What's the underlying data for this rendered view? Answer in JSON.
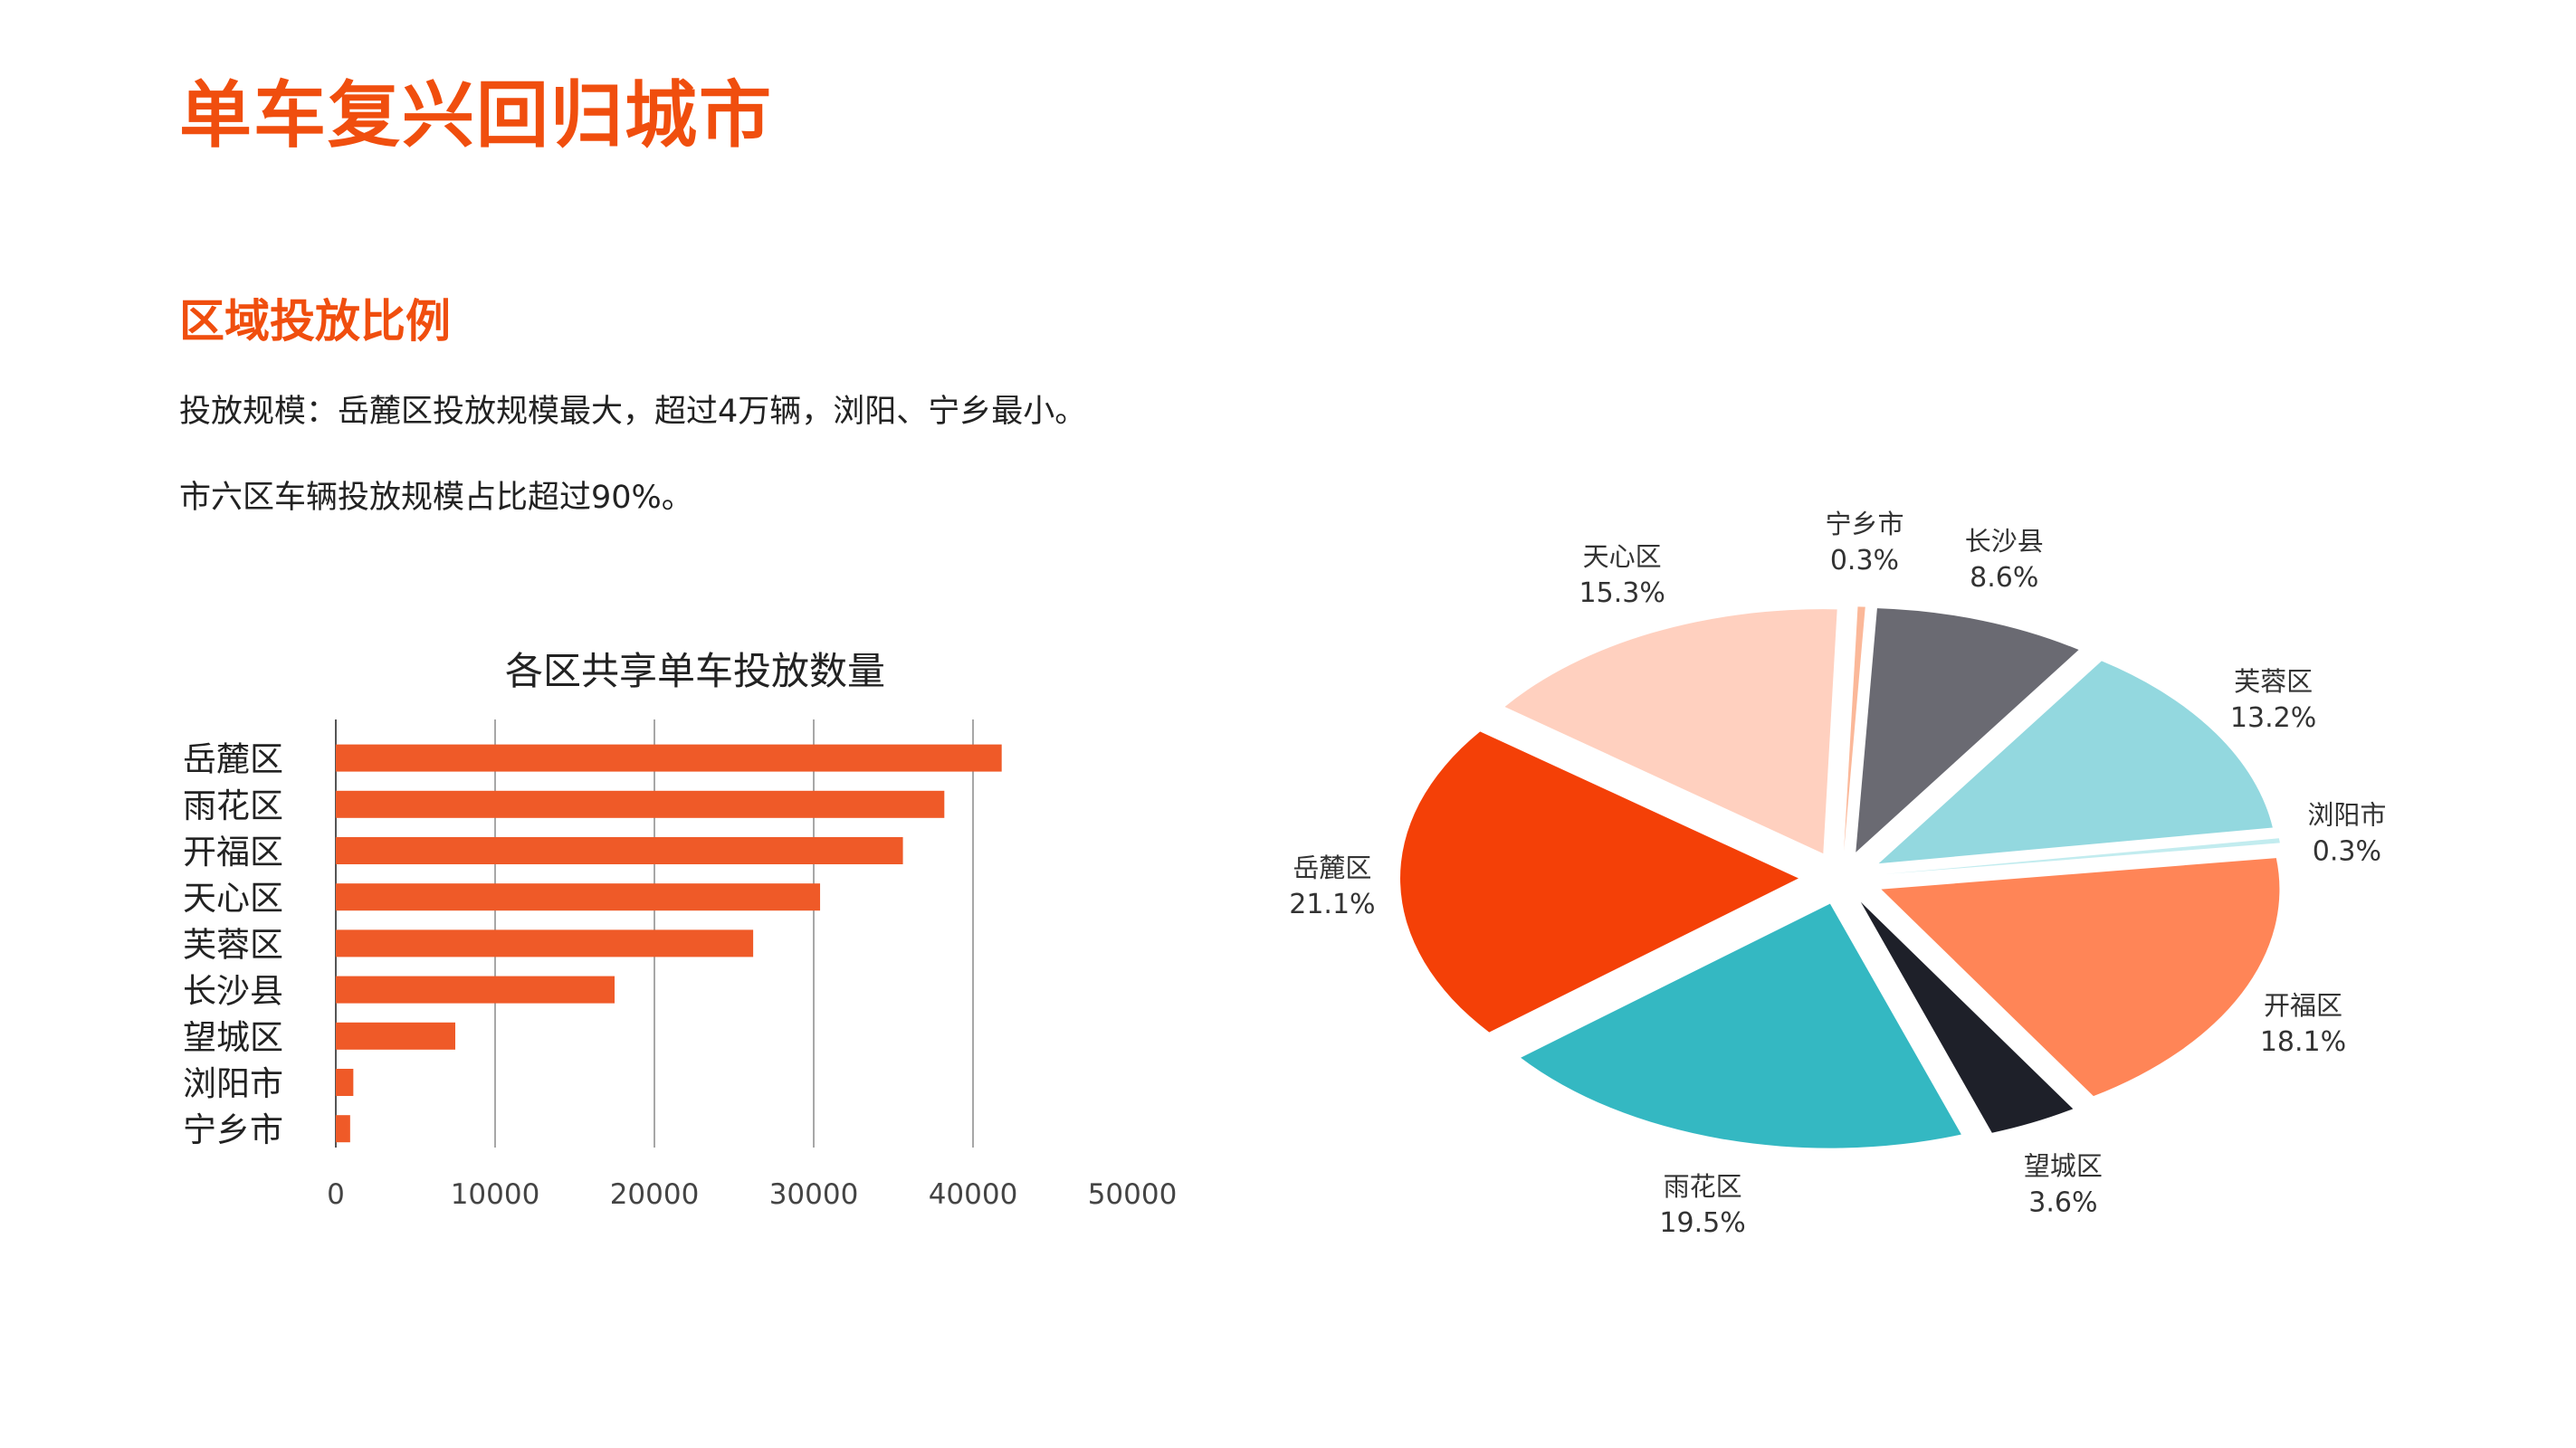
{
  "header": {
    "title": "单车复兴回归城市"
  },
  "section": {
    "title": "区域投放比例",
    "paragraphs": [
      "投放规模：岳麓区投放规模最大，超过4万辆，浏阳、宁乡最小。",
      "市六区车辆投放规模占比超过90%。"
    ]
  },
  "colors": {
    "accent": "#f04e0e",
    "bar": "#ef5a28"
  },
  "chart_data": [
    {
      "type": "bar",
      "orientation": "horizontal",
      "title": "各区共享单车投放数量",
      "categories": [
        "岳麓区",
        "雨花区",
        "开福区",
        "天心区",
        "芙蓉区",
        "长沙县",
        "望城区",
        "浏阳市",
        "宁乡市"
      ],
      "values": [
        41800,
        38200,
        35600,
        30400,
        26200,
        17500,
        7500,
        1100,
        900
      ],
      "xlim": [
        0,
        50000
      ],
      "xticks": [
        0,
        10000,
        20000,
        30000,
        40000,
        50000
      ],
      "grid": "vertical",
      "color": "#ef5a28"
    },
    {
      "type": "pie",
      "exploded": true,
      "labels": [
        "宁乡市",
        "长沙县",
        "芙蓉区",
        "浏阳市",
        "开福区",
        "望城区",
        "雨花区",
        "岳麓区",
        "天心区"
      ],
      "values": [
        0.3,
        8.6,
        13.2,
        0.3,
        18.1,
        3.6,
        19.5,
        21.1,
        15.3
      ],
      "value_labels": [
        "0.3%",
        "8.6%",
        "13.2%",
        "0.3%",
        "18.1%",
        "3.6%",
        "19.5%",
        "21.1%",
        "15.3%"
      ],
      "colors": [
        "#fbb899",
        "#6a6a72",
        "#93d8df",
        "#c2ecef",
        "#ff8557",
        "#1e2029",
        "#34b8c2",
        "#f44007",
        "#ffd0bf"
      ]
    }
  ]
}
